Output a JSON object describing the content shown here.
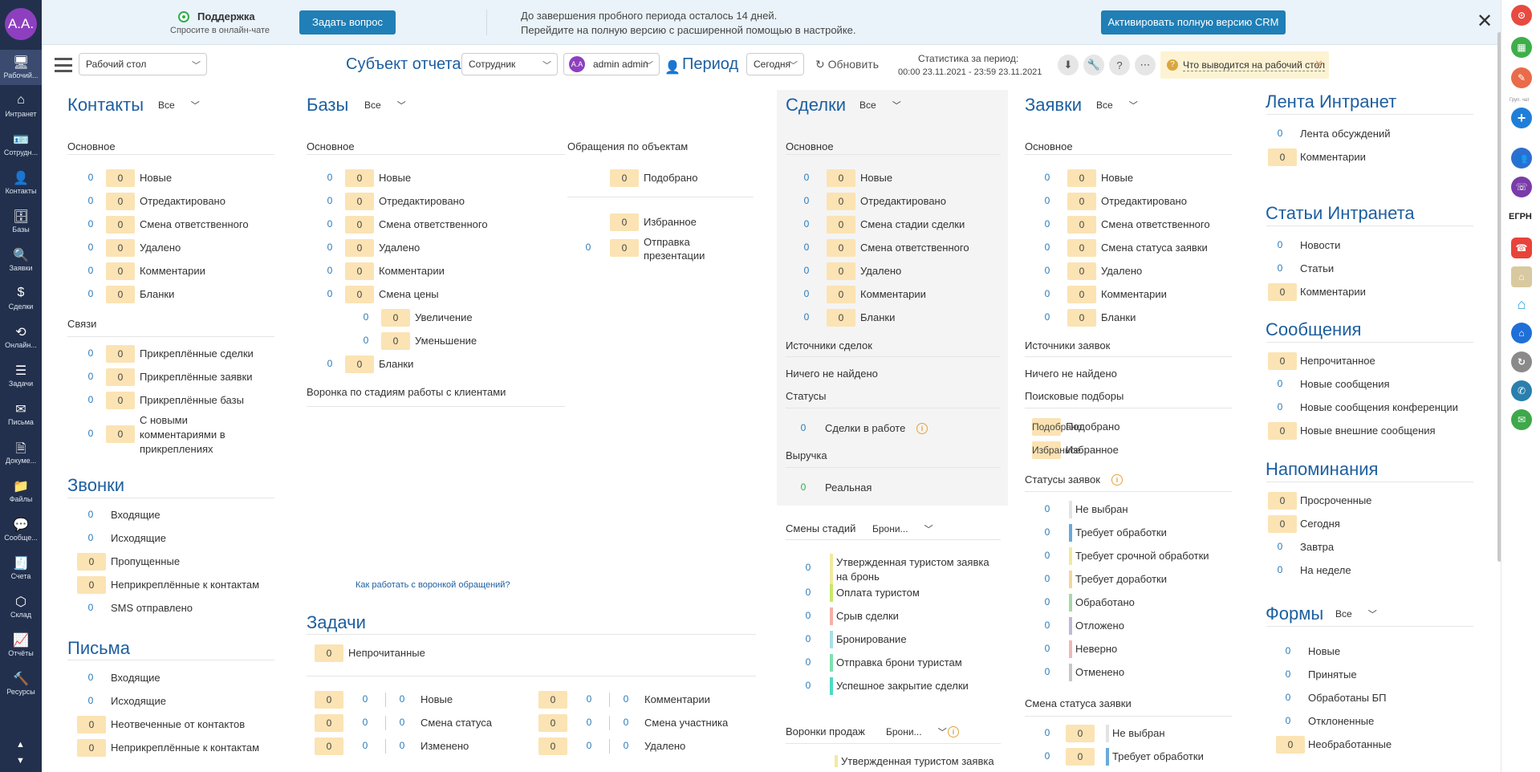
{
  "leftbar": {
    "avatar": "A.A.",
    "items": [
      {
        "label": "Рабочий...",
        "icon": "desktop-icon",
        "active": true
      },
      {
        "label": "Интранет",
        "icon": "home-icon"
      },
      {
        "label": "Сотрудн...",
        "icon": "employee-icon"
      },
      {
        "label": "Контакты",
        "icon": "contact-icon"
      },
      {
        "label": "Базы",
        "icon": "database-icon"
      },
      {
        "label": "Заявки",
        "icon": "search-icon"
      },
      {
        "label": "Сделки",
        "icon": "dollar-icon"
      },
      {
        "label": "Онлайн...",
        "icon": "refresh-icon"
      },
      {
        "label": "Задачи",
        "icon": "tasks-icon"
      },
      {
        "label": "Письма",
        "icon": "mail-icon"
      },
      {
        "label": "Докуме...",
        "icon": "document-icon"
      },
      {
        "label": "Файлы",
        "icon": "folder-icon"
      },
      {
        "label": "Сообще...",
        "icon": "chat-icon"
      },
      {
        "label": "Счета",
        "icon": "invoice-icon"
      },
      {
        "label": "Склад",
        "icon": "warehouse-icon"
      },
      {
        "label": "Отчёты",
        "icon": "chart-icon"
      },
      {
        "label": "Ресурсы",
        "icon": "tools-icon"
      }
    ]
  },
  "banner": {
    "support_title": "Поддержка",
    "support_sub": "Спросите в онлайн-чате",
    "ask_button": "Задать вопрос",
    "trial_line1": "До завершения пробного периода осталось 14 дней.",
    "trial_line2": "Перейдите на полную версию с расширенной помощью в настройке.",
    "activate_button": "Активировать полную версию CRM",
    "close": "✕"
  },
  "toolbar": {
    "desktop_select": "Рабочий стол",
    "subject_label": "Субъект отчета",
    "employee_select": "Сотрудник",
    "user_avatar": "A.A",
    "user_select": "admin admin",
    "period_label": "Период",
    "period_select": "Сегодня",
    "refresh_label": "Обновить",
    "stat_line1": "Статистика за период:",
    "stat_line2": "00:00 23.11.2021 - 23:59 23.11.2021",
    "hint_text": "Что выводится на рабочий стол",
    "hint_close": "✕"
  },
  "contacts": {
    "title": "Контакты",
    "filter": "Все",
    "group1": "Основное",
    "rows1": [
      [
        "0",
        "0",
        "Новые"
      ],
      [
        "0",
        "0",
        "Отредактировано"
      ],
      [
        "0",
        "0",
        "Смена ответственного"
      ],
      [
        "0",
        "0",
        "Удалено"
      ],
      [
        "0",
        "0",
        "Комментарии"
      ],
      [
        "0",
        "0",
        "Бланки"
      ]
    ],
    "group2": "Связи",
    "rows2": [
      [
        "0",
        "0",
        "Прикреплённые сделки"
      ],
      [
        "0",
        "0",
        "Прикреплённые заявки"
      ],
      [
        "0",
        "0",
        "Прикреплённые базы"
      ]
    ],
    "multi_label_1": "С новыми",
    "multi_label_2": "комментариями в",
    "multi_label_3": "прикреплениях",
    "multi_n": "0",
    "multi_v": "0"
  },
  "calls": {
    "title": "Звонки",
    "rows": [
      [
        "0",
        "",
        "Входящие"
      ],
      [
        "0",
        "",
        "Исходящие"
      ],
      [
        "",
        "0",
        "Пропущенные"
      ],
      [
        "",
        "0",
        "Неприкреплённые к контактам"
      ],
      [
        "0",
        "",
        "SMS отправлено"
      ]
    ]
  },
  "letters": {
    "title": "Письма",
    "rows": [
      [
        "0",
        "",
        "Входящие"
      ],
      [
        "0",
        "",
        "Исходящие"
      ],
      [
        "",
        "0",
        "Неотвеченные от контактов"
      ],
      [
        "",
        "0",
        "Неприкреплённые к контактам"
      ]
    ]
  },
  "bases": {
    "title": "Базы",
    "filter": "Все",
    "group1": "Основное",
    "rows": [
      [
        "0",
        "0",
        "Новые"
      ],
      [
        "0",
        "0",
        "Отредактировано"
      ],
      [
        "0",
        "0",
        "Смена ответственного"
      ],
      [
        "0",
        "0",
        "Удалено"
      ],
      [
        "0",
        "0",
        "Комментарии"
      ],
      [
        "0",
        "0",
        "Смена цены"
      ]
    ],
    "sub": [
      [
        "0",
        "0",
        "Увеличение"
      ],
      [
        "0",
        "0",
        "Уменьшение"
      ]
    ],
    "last": [
      "0",
      "0",
      "Бланки"
    ],
    "funnel_title": "Воронка по стадиям работы с клиентами",
    "funnel_link": "Как работать с воронкой обращений?",
    "objects_title": "Обращения по объектам",
    "obj_rows": [
      [
        "",
        "0",
        "Подобрано"
      ],
      [
        "",
        "0",
        "Избранное"
      ]
    ],
    "obj_multi_n": "0",
    "obj_multi_v": "0",
    "obj_multi_1": "Отправка",
    "obj_multi_2": "презентации"
  },
  "tasks": {
    "title": "Задачи",
    "unread_v": "0",
    "unread_label": "Непрочитанные",
    "left": [
      [
        "0",
        "0",
        "0",
        "Новые"
      ],
      [
        "0",
        "0",
        "0",
        "Смена статуса"
      ],
      [
        "0",
        "0",
        "0",
        "Изменено"
      ]
    ],
    "right": [
      [
        "0",
        "0",
        "0",
        "Комментарии"
      ],
      [
        "0",
        "0",
        "0",
        "Смена участника"
      ],
      [
        "0",
        "0",
        "0",
        "Удалено"
      ]
    ]
  },
  "deals": {
    "title": "Сделки",
    "filter": "Все",
    "group1": "Основное",
    "rows": [
      [
        "0",
        "0",
        "Новые"
      ],
      [
        "0",
        "0",
        "Отредактировано"
      ],
      [
        "0",
        "0",
        "Смена стадии сделки"
      ],
      [
        "0",
        "0",
        "Смена ответственного"
      ],
      [
        "0",
        "0",
        "Удалено"
      ],
      [
        "0",
        "0",
        "Комментарии"
      ],
      [
        "0",
        "0",
        "Бланки"
      ]
    ],
    "sources_title": "Источники сделок",
    "sources_empty": "Ничего не найдено",
    "statuses_title": "Статусы",
    "status_row": [
      "0",
      "Сделки в работе"
    ],
    "revenue_title": "Выручка",
    "revenue_row": [
      "0",
      "Реальная"
    ],
    "stage_title": "Смены стадий",
    "stage_filter": "Брони...",
    "stage_rows": [
      [
        "0",
        "Утвержденная туристом заявка",
        "на бронь",
        "#f2e9a0"
      ],
      [
        "0",
        "",
        "Оплата туристом",
        "#c8e86a"
      ],
      [
        "0",
        "",
        "Срыв сделки",
        "#f4b0a8"
      ],
      [
        "0",
        "",
        "Бронирование",
        "#a8dfe8"
      ],
      [
        "0",
        "",
        "Отправка брони туристам",
        "#7fe0b0"
      ],
      [
        "0",
        "",
        "Успешное закрытие сделки",
        "#4fd9c5"
      ]
    ],
    "funnel_title": "Воронки продаж",
    "funnel_filter": "Брони...",
    "funnel_row": "Утвержденная туристом заявка"
  },
  "requests": {
    "title": "Заявки",
    "filter": "Все",
    "group1": "Основное",
    "rows": [
      [
        "0",
        "0",
        "Новые"
      ],
      [
        "0",
        "0",
        "Отредактировано"
      ],
      [
        "0",
        "0",
        "Смена ответственного"
      ],
      [
        "0",
        "0",
        "Смена статуса заявки"
      ],
      [
        "0",
        "0",
        "Удалено"
      ],
      [
        "0",
        "0",
        "Комментарии"
      ],
      [
        "0",
        "0",
        "Бланки"
      ]
    ],
    "sources_title": "Источники заявок",
    "sources_empty": "Ничего не найдено",
    "search_title": "Поисковые подборы",
    "search_rows": [
      [
        "0",
        "Подобрано"
      ],
      [
        "0",
        "Избранное"
      ]
    ],
    "status_title": "Статусы заявок",
    "status_rows": [
      [
        "0",
        "Не выбран",
        "#e3e3e3"
      ],
      [
        "0",
        "Требует обработки",
        "#6aa9dc"
      ],
      [
        "0",
        "Требует срочной обработки",
        "#f2e9a0"
      ],
      [
        "0",
        "Требует доработки",
        "#f5d79a"
      ],
      [
        "0",
        "Обработано",
        "#a8d8a8"
      ],
      [
        "0",
        "Отложено",
        "#c0b8d8"
      ],
      [
        "0",
        "Неверно",
        "#f0b8b8"
      ],
      [
        "0",
        "Отменено",
        "#c8c8c8"
      ]
    ],
    "change_title": "Смена статуса заявки",
    "change_rows": [
      [
        "0",
        "0",
        "Не выбран",
        "#e3e3e3"
      ],
      [
        "0",
        "0",
        "Требует обработки",
        "#6aa9dc"
      ]
    ]
  },
  "intranet": {
    "title": "Лента Интранет",
    "rows": [
      [
        "0",
        "",
        "Лента обсуждений"
      ],
      [
        "",
        "0",
        "Комментарии"
      ]
    ]
  },
  "articles": {
    "title": "Статьи Интранета",
    "rows": [
      [
        "0",
        "",
        "Новости"
      ],
      [
        "0",
        "",
        "Статьи"
      ],
      [
        "",
        "0",
        "Комментарии"
      ]
    ]
  },
  "messages": {
    "title": "Сообщения",
    "rows": [
      [
        "",
        "0",
        "Непрочитанное"
      ],
      [
        "0",
        "",
        "Новые сообщения"
      ],
      [
        "0",
        "",
        "Новые сообщения конференции"
      ],
      [
        "",
        "0",
        "Новые внешние сообщения"
      ]
    ]
  },
  "reminders": {
    "title": "Напоминания",
    "rows": [
      [
        "",
        "0",
        "Просроченные"
      ],
      [
        "",
        "0",
        "Сегодня"
      ],
      [
        "0",
        "",
        "Завтра"
      ],
      [
        "0",
        "",
        "На неделе"
      ]
    ]
  },
  "forms": {
    "title": "Формы",
    "filter": "Все",
    "rows": [
      [
        "0",
        "",
        "Новые"
      ],
      [
        "0",
        "",
        "Принятые"
      ],
      [
        "0",
        "",
        "Обработаны БП"
      ],
      [
        "0",
        "",
        "Отклоненные"
      ],
      [
        "",
        "0",
        "Необработанные"
      ]
    ]
  },
  "rightbar": {
    "crm_label": "Груп. чат",
    "egrn": "ЕГРН"
  }
}
